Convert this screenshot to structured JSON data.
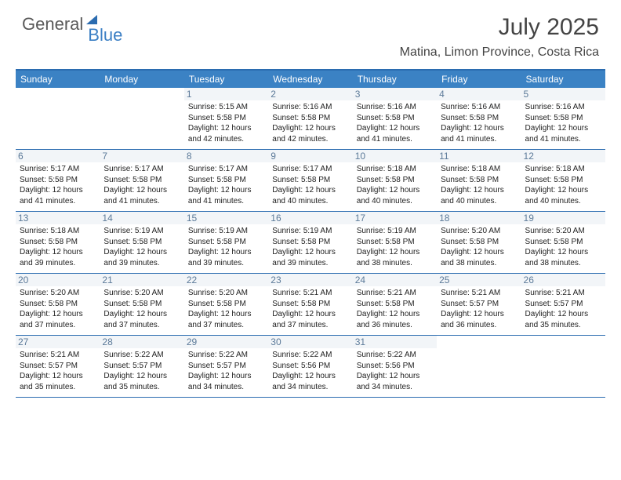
{
  "brand": {
    "part1": "General",
    "part2": "Blue"
  },
  "title": "July 2025",
  "location": "Matina, Limon Province, Costa Rica",
  "colors": {
    "header_bg": "#3b82c4",
    "border": "#2b6cb0",
    "daynum_bg": "#f2f5f8",
    "daynum_color": "#5c7a99",
    "text": "#222222",
    "title_color": "#444444"
  },
  "day_headers": [
    "Sunday",
    "Monday",
    "Tuesday",
    "Wednesday",
    "Thursday",
    "Friday",
    "Saturday"
  ],
  "weeks": [
    [
      null,
      null,
      {
        "n": "1",
        "sr": "5:15 AM",
        "ss": "5:58 PM",
        "dl": "12 hours and 42 minutes."
      },
      {
        "n": "2",
        "sr": "5:16 AM",
        "ss": "5:58 PM",
        "dl": "12 hours and 42 minutes."
      },
      {
        "n": "3",
        "sr": "5:16 AM",
        "ss": "5:58 PM",
        "dl": "12 hours and 41 minutes."
      },
      {
        "n": "4",
        "sr": "5:16 AM",
        "ss": "5:58 PM",
        "dl": "12 hours and 41 minutes."
      },
      {
        "n": "5",
        "sr": "5:16 AM",
        "ss": "5:58 PM",
        "dl": "12 hours and 41 minutes."
      }
    ],
    [
      {
        "n": "6",
        "sr": "5:17 AM",
        "ss": "5:58 PM",
        "dl": "12 hours and 41 minutes."
      },
      {
        "n": "7",
        "sr": "5:17 AM",
        "ss": "5:58 PM",
        "dl": "12 hours and 41 minutes."
      },
      {
        "n": "8",
        "sr": "5:17 AM",
        "ss": "5:58 PM",
        "dl": "12 hours and 41 minutes."
      },
      {
        "n": "9",
        "sr": "5:17 AM",
        "ss": "5:58 PM",
        "dl": "12 hours and 40 minutes."
      },
      {
        "n": "10",
        "sr": "5:18 AM",
        "ss": "5:58 PM",
        "dl": "12 hours and 40 minutes."
      },
      {
        "n": "11",
        "sr": "5:18 AM",
        "ss": "5:58 PM",
        "dl": "12 hours and 40 minutes."
      },
      {
        "n": "12",
        "sr": "5:18 AM",
        "ss": "5:58 PM",
        "dl": "12 hours and 40 minutes."
      }
    ],
    [
      {
        "n": "13",
        "sr": "5:18 AM",
        "ss": "5:58 PM",
        "dl": "12 hours and 39 minutes."
      },
      {
        "n": "14",
        "sr": "5:19 AM",
        "ss": "5:58 PM",
        "dl": "12 hours and 39 minutes."
      },
      {
        "n": "15",
        "sr": "5:19 AM",
        "ss": "5:58 PM",
        "dl": "12 hours and 39 minutes."
      },
      {
        "n": "16",
        "sr": "5:19 AM",
        "ss": "5:58 PM",
        "dl": "12 hours and 39 minutes."
      },
      {
        "n": "17",
        "sr": "5:19 AM",
        "ss": "5:58 PM",
        "dl": "12 hours and 38 minutes."
      },
      {
        "n": "18",
        "sr": "5:20 AM",
        "ss": "5:58 PM",
        "dl": "12 hours and 38 minutes."
      },
      {
        "n": "19",
        "sr": "5:20 AM",
        "ss": "5:58 PM",
        "dl": "12 hours and 38 minutes."
      }
    ],
    [
      {
        "n": "20",
        "sr": "5:20 AM",
        "ss": "5:58 PM",
        "dl": "12 hours and 37 minutes."
      },
      {
        "n": "21",
        "sr": "5:20 AM",
        "ss": "5:58 PM",
        "dl": "12 hours and 37 minutes."
      },
      {
        "n": "22",
        "sr": "5:20 AM",
        "ss": "5:58 PM",
        "dl": "12 hours and 37 minutes."
      },
      {
        "n": "23",
        "sr": "5:21 AM",
        "ss": "5:58 PM",
        "dl": "12 hours and 37 minutes."
      },
      {
        "n": "24",
        "sr": "5:21 AM",
        "ss": "5:58 PM",
        "dl": "12 hours and 36 minutes."
      },
      {
        "n": "25",
        "sr": "5:21 AM",
        "ss": "5:57 PM",
        "dl": "12 hours and 36 minutes."
      },
      {
        "n": "26",
        "sr": "5:21 AM",
        "ss": "5:57 PM",
        "dl": "12 hours and 35 minutes."
      }
    ],
    [
      {
        "n": "27",
        "sr": "5:21 AM",
        "ss": "5:57 PM",
        "dl": "12 hours and 35 minutes."
      },
      {
        "n": "28",
        "sr": "5:22 AM",
        "ss": "5:57 PM",
        "dl": "12 hours and 35 minutes."
      },
      {
        "n": "29",
        "sr": "5:22 AM",
        "ss": "5:57 PM",
        "dl": "12 hours and 34 minutes."
      },
      {
        "n": "30",
        "sr": "5:22 AM",
        "ss": "5:56 PM",
        "dl": "12 hours and 34 minutes."
      },
      {
        "n": "31",
        "sr": "5:22 AM",
        "ss": "5:56 PM",
        "dl": "12 hours and 34 minutes."
      },
      null,
      null
    ]
  ],
  "labels": {
    "sunrise": "Sunrise:",
    "sunset": "Sunset:",
    "daylight": "Daylight:"
  }
}
